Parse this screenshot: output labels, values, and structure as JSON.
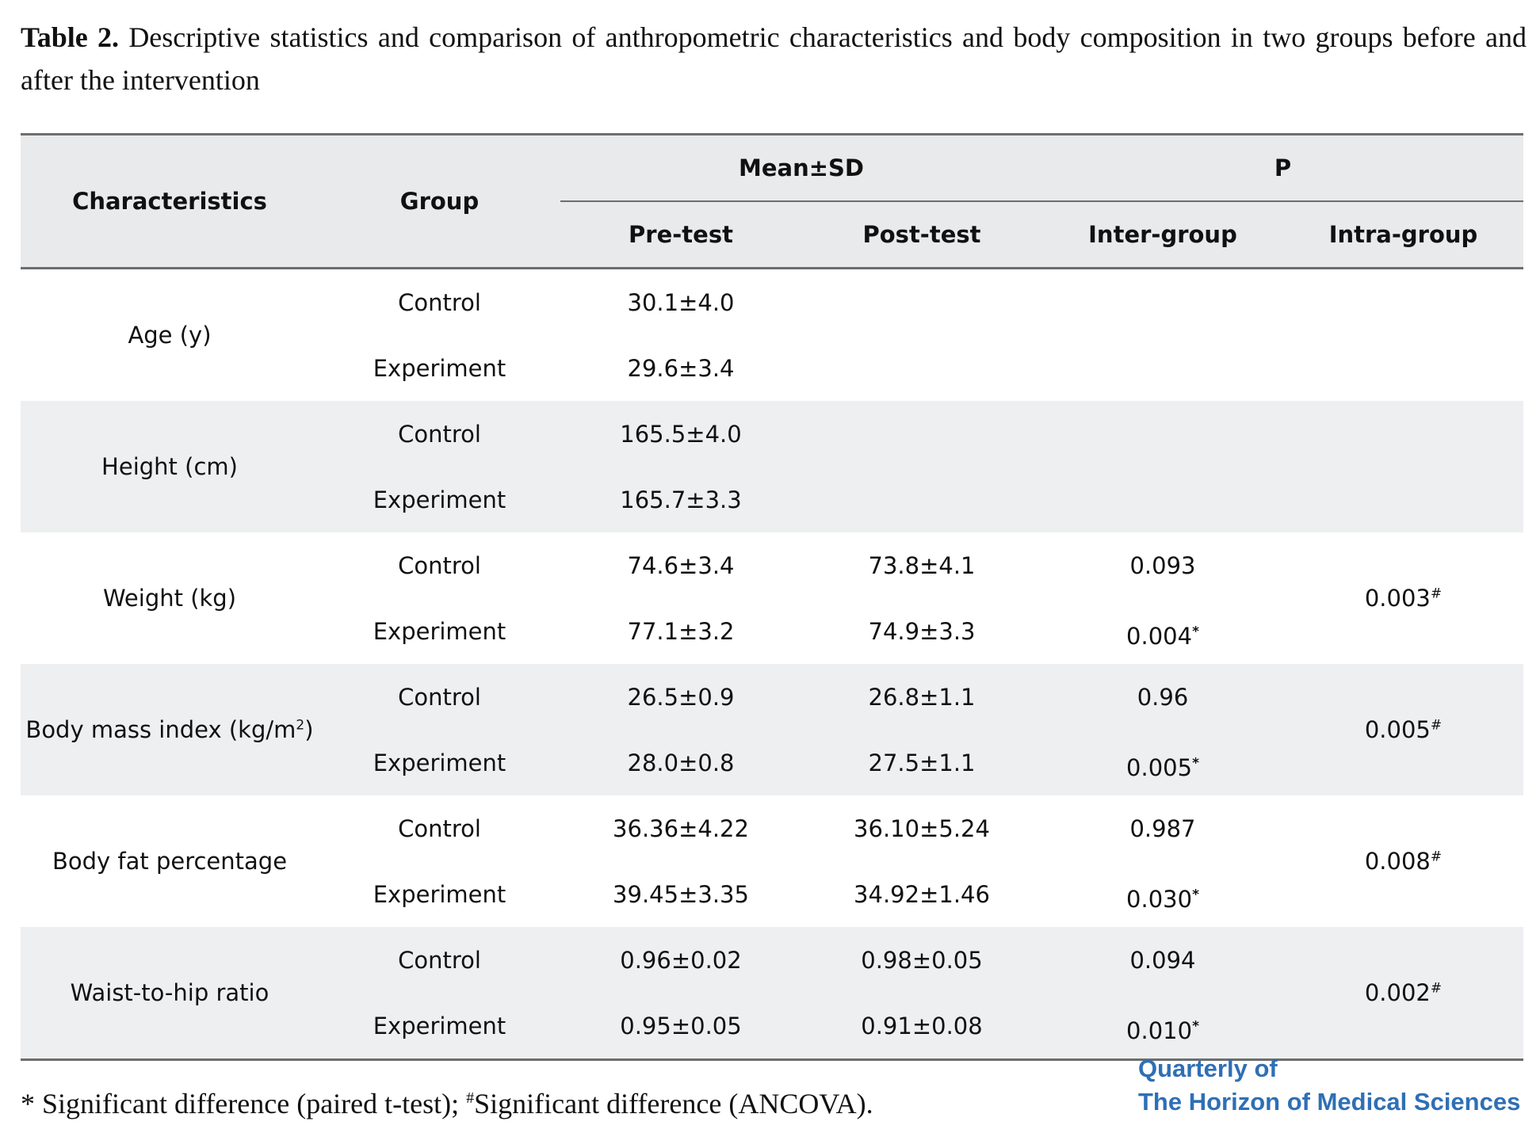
{
  "caption": {
    "label": "Table 2.",
    "text": "Descriptive statistics and comparison of anthropometric characteristics and body composition in two groups before and after the intervention"
  },
  "headers": {
    "characteristics": "Characteristics",
    "group": "Group",
    "mean_sd": "Mean±SD",
    "p": "P",
    "pre_test": "Pre-test",
    "post_test": "Post-test",
    "inter_group": "Inter-group",
    "intra_group": "Intra-group"
  },
  "rows": [
    {
      "characteristic": "Age (y)",
      "control": {
        "group": "Control",
        "pre": "30.1±4.0",
        "post": "",
        "inter": "",
        "inter_mark": ""
      },
      "experiment": {
        "group": "Experiment",
        "pre": "29.6±3.4",
        "post": "",
        "inter": "",
        "inter_mark": ""
      },
      "intra": "",
      "intra_mark": ""
    },
    {
      "characteristic": "Height (cm)",
      "control": {
        "group": "Control",
        "pre": "165.5±4.0",
        "post": "",
        "inter": "",
        "inter_mark": ""
      },
      "experiment": {
        "group": "Experiment",
        "pre": "165.7±3.3",
        "post": "",
        "inter": "",
        "inter_mark": ""
      },
      "intra": "",
      "intra_mark": ""
    },
    {
      "characteristic": "Weight (kg)",
      "control": {
        "group": "Control",
        "pre": "74.6±3.4",
        "post": "73.8±4.1",
        "inter": "0.093",
        "inter_mark": ""
      },
      "experiment": {
        "group": "Experiment",
        "pre": "77.1±3.2",
        "post": "74.9±3.3",
        "inter": "0.004",
        "inter_mark": "*"
      },
      "intra": "0.003",
      "intra_mark": "#"
    },
    {
      "characteristic": "Body mass index (kg/m",
      "characteristic_sup": "2",
      "characteristic_tail": ")",
      "control": {
        "group": "Control",
        "pre": "26.5±0.9",
        "post": "26.8±1.1",
        "inter": "0.96",
        "inter_mark": ""
      },
      "experiment": {
        "group": "Experiment",
        "pre": "28.0±0.8",
        "post": "27.5±1.1",
        "inter": "0.005",
        "inter_mark": "*"
      },
      "intra": "0.005",
      "intra_mark": "#"
    },
    {
      "characteristic": "Body fat percentage",
      "control": {
        "group": "Control",
        "pre": "36.36±4.22",
        "post": "36.10±5.24",
        "inter": "0.987",
        "inter_mark": ""
      },
      "experiment": {
        "group": "Experiment",
        "pre": "39.45±3.35",
        "post": "34.92±1.46",
        "inter": "0.030",
        "inter_mark": "*"
      },
      "intra": "0.008",
      "intra_mark": "#"
    },
    {
      "characteristic": "Waist-to-hip ratio",
      "control": {
        "group": "Control",
        "pre": "0.96±0.02",
        "post": "0.98±0.05",
        "inter": "0.094",
        "inter_mark": ""
      },
      "experiment": {
        "group": "Experiment",
        "pre": "0.95±0.05",
        "post": "0.91±0.08",
        "inter": "0.010",
        "inter_mark": "*"
      },
      "intra": "0.002",
      "intra_mark": "#"
    }
  ],
  "footnote": {
    "part1": "* Significant difference (paired t-test); ",
    "mark": "#",
    "part2": "Significant difference (ANCOVA)."
  },
  "journal": {
    "line1": "Quarterly of",
    "line2": "The Horizon of Medical Sciences"
  }
}
